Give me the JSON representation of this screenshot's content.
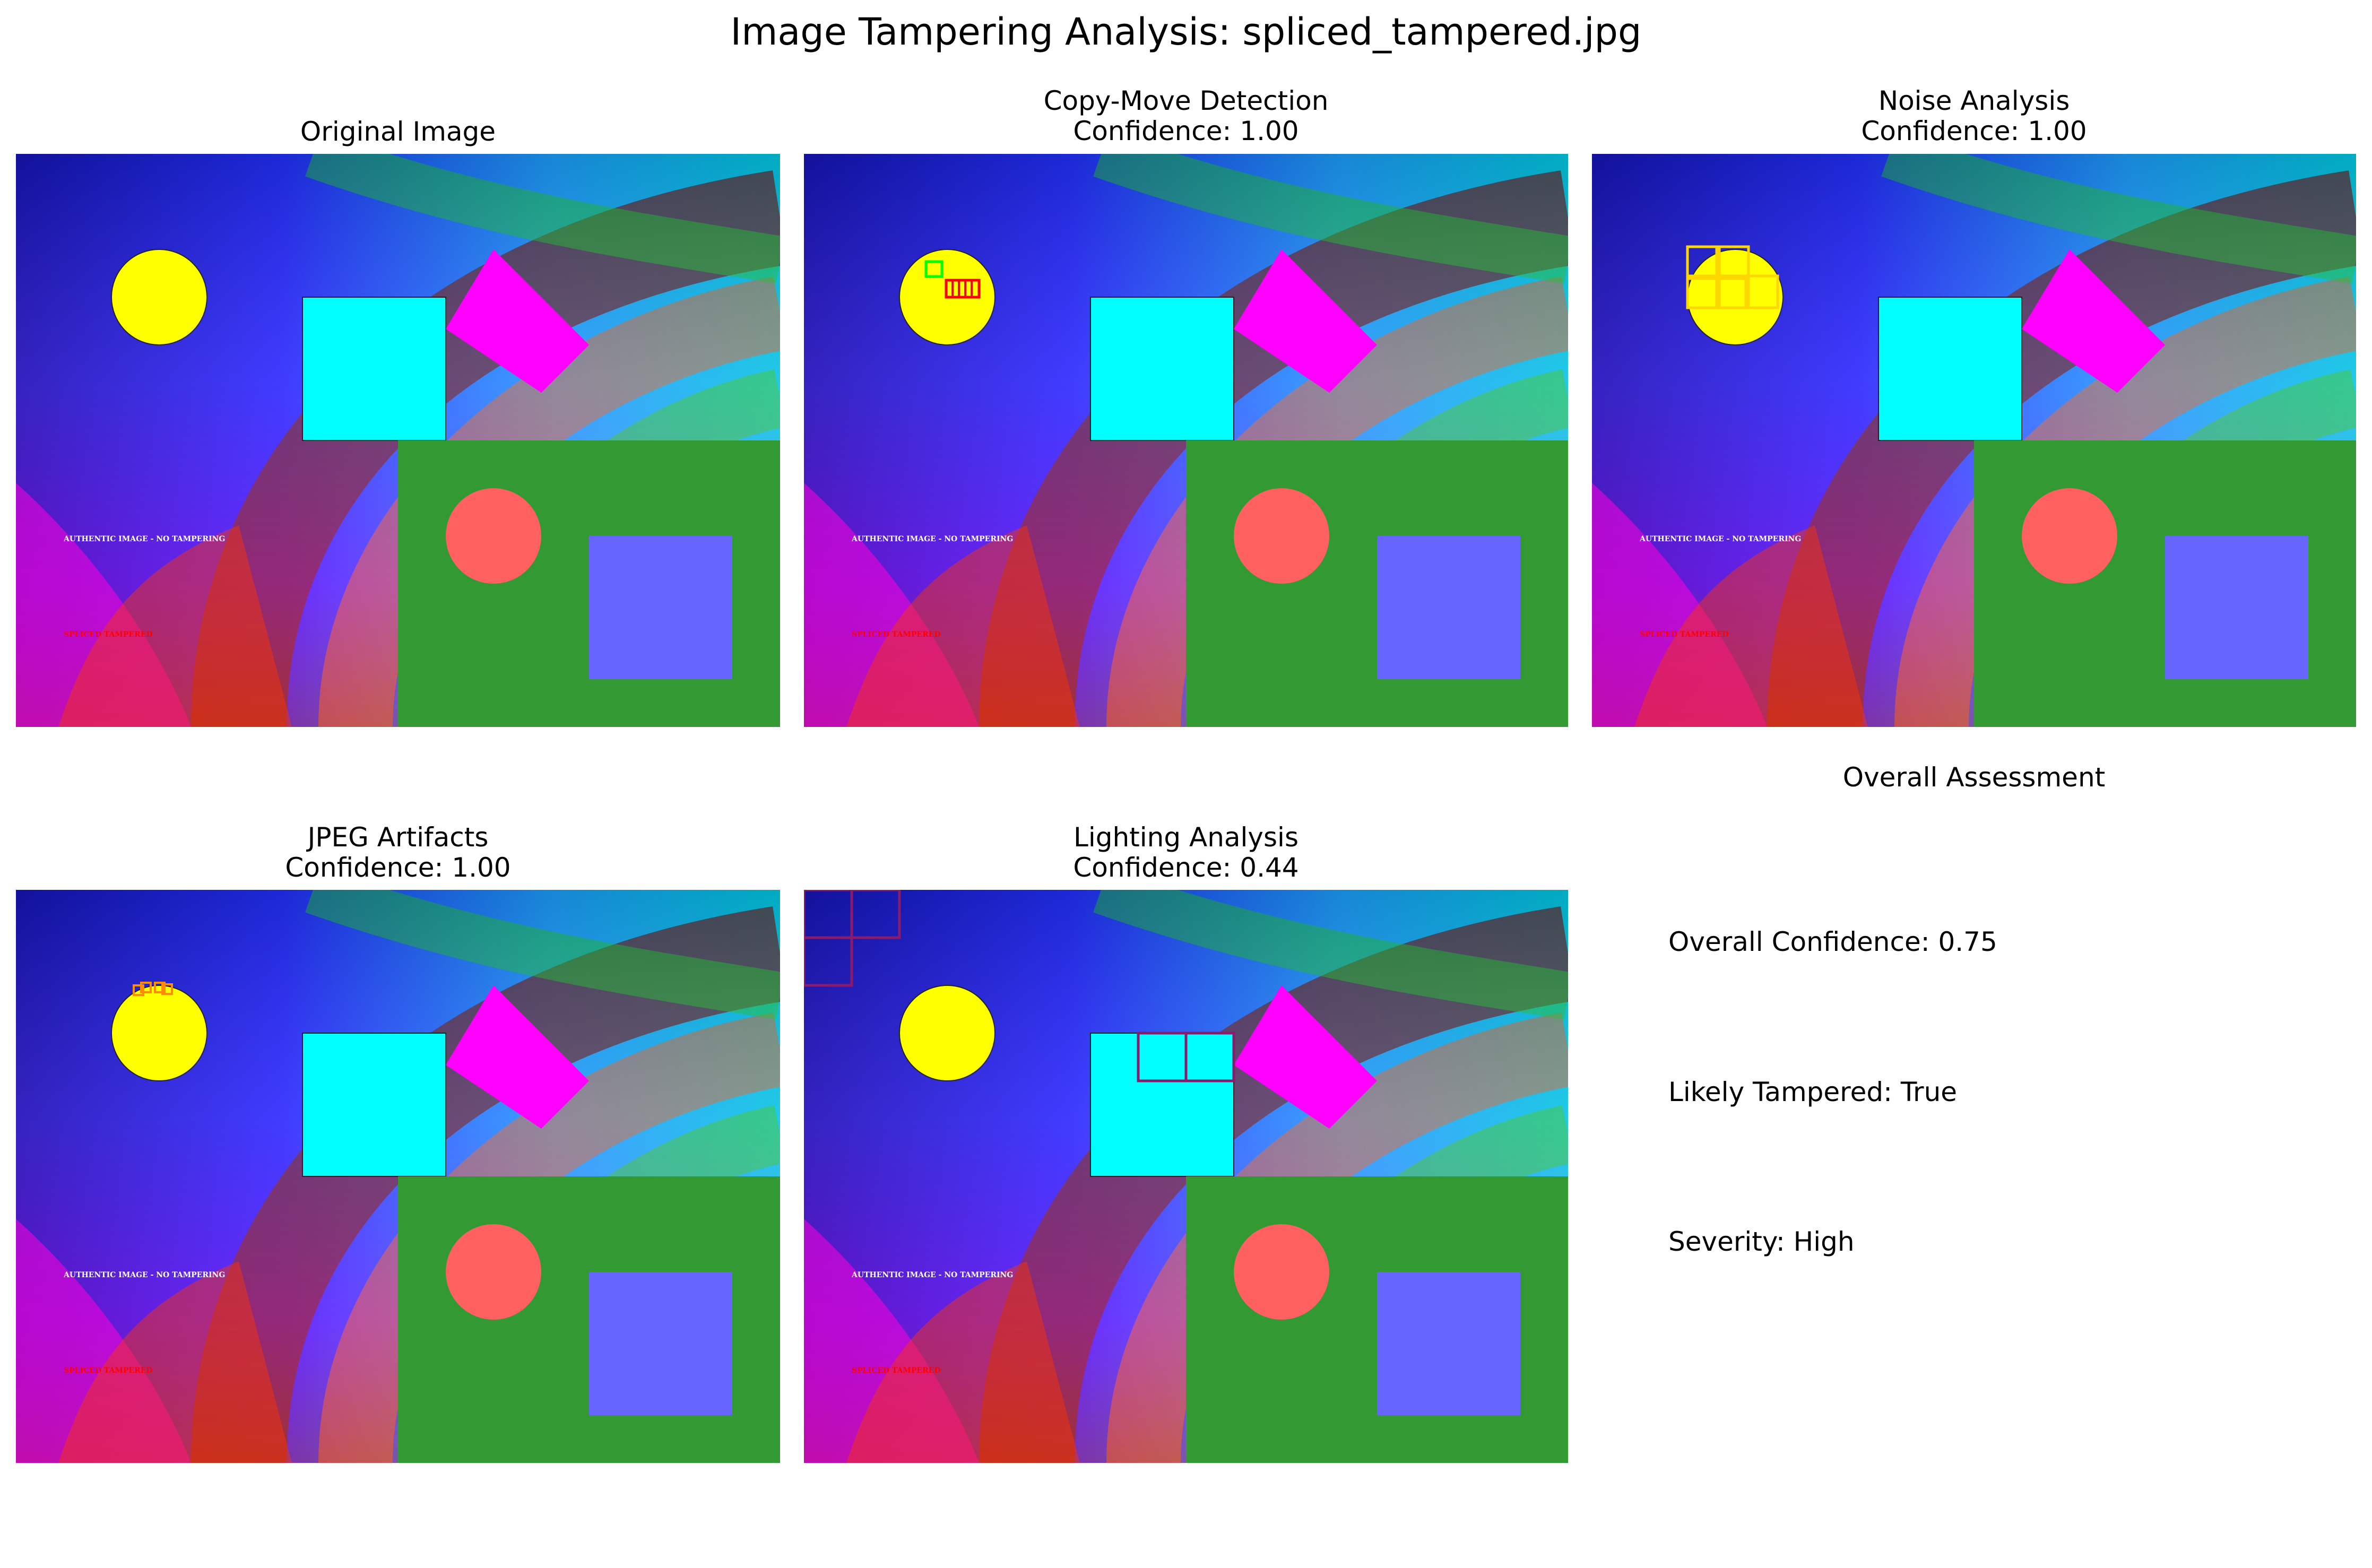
{
  "title": "Image Tampering Analysis: spliced_tampered.jpg",
  "panels": [
    {
      "title": "Original Image",
      "confidence_label": ""
    },
    {
      "title": "Copy-Move Detection",
      "confidence_label": "Confidence: 1.00"
    },
    {
      "title": "Noise Analysis",
      "confidence_label": "Confidence: 1.00"
    },
    {
      "title": "JPEG Artifacts",
      "confidence_label": "Confidence: 1.00"
    },
    {
      "title": "Lighting Analysis",
      "confidence_label": "Confidence: 0.44"
    }
  ],
  "image_text": {
    "authentic": "AUTHENTIC IMAGE - NO TAMPERING",
    "spliced": "SPLICED TAMPERED"
  },
  "assessment": {
    "title": "Overall Assessment",
    "confidence": "Overall Confidence: 0.75",
    "tampered": "Likely Tampered: True",
    "severity": "Severity: High"
  },
  "colors": {
    "circle": "#ffff00",
    "square": "#00ffff",
    "quad": "#ff00ff",
    "green_region": "#339933",
    "coral_circle": "#ff6060",
    "blue_square": "#6666ff",
    "copy_move_source": "#00ff00",
    "copy_move_target": "#ff0000",
    "noise_box": "#ffd700",
    "jpeg_box": "#ff8c00",
    "lighting_box": "#8b1a6b"
  }
}
